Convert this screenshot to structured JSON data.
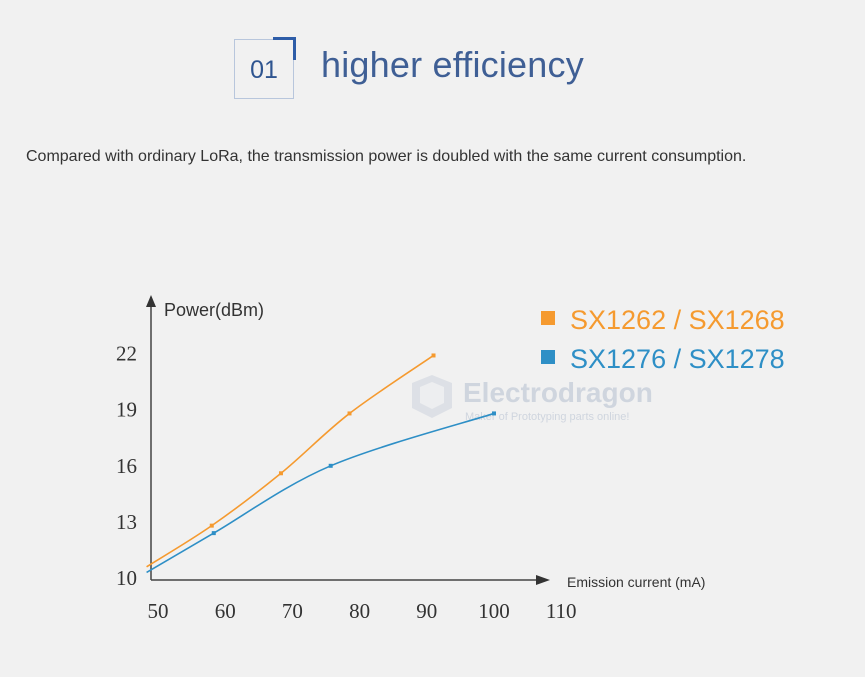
{
  "section": {
    "number": "01",
    "title": "higher efficiency",
    "description": "Compared with ordinary LoRa, the transmission power is doubled with the same current consumption."
  },
  "watermark": {
    "brand": "Electrodragon",
    "tagline": "Maker of Prototyping parts online!"
  },
  "chart_data": {
    "type": "line",
    "xlabel": "Emission current (mA)",
    "ylabel": "Power(dBm)",
    "x_ticks": [
      50,
      60,
      70,
      80,
      90,
      100,
      110
    ],
    "y_ticks": [
      10,
      13,
      16,
      19,
      22
    ],
    "xlim": [
      50,
      110
    ],
    "ylim": [
      10,
      22
    ],
    "legend_position": "top-right",
    "grid": false,
    "series": [
      {
        "name": "SX1262 / SX1268",
        "color": "#f59a2f",
        "x": [
          48.3,
          58,
          68.3,
          78.5,
          91
        ],
        "y": [
          10.6,
          12.8,
          15.6,
          18.8,
          21.9
        ]
      },
      {
        "name": "SX1276 / SX1278",
        "color": "#2e8fc6",
        "x": [
          48.3,
          58.3,
          75.7,
          100
        ],
        "y": [
          10.3,
          12.4,
          16.0,
          18.8
        ]
      }
    ]
  }
}
